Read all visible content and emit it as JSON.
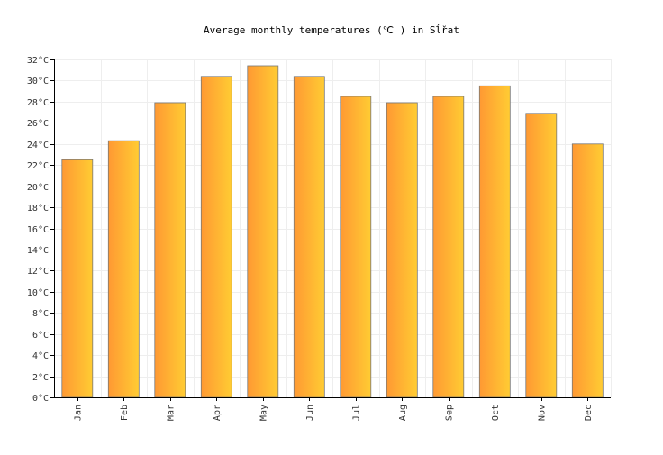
{
  "chart_data": {
    "type": "bar",
    "title": "Average monthly temperatures (℃ ) in Sĺ̌rat",
    "xlabel": "",
    "ylabel": "",
    "categories": [
      "Jan",
      "Feb",
      "Mar",
      "Apr",
      "May",
      "Jun",
      "Jul",
      "Aug",
      "Sep",
      "Oct",
      "Nov",
      "Dec"
    ],
    "values": [
      22.5,
      24.3,
      27.9,
      30.4,
      31.4,
      30.4,
      28.5,
      27.9,
      28.5,
      29.5,
      26.9,
      24.0
    ],
    "ylim": [
      0,
      32
    ],
    "ytick_step": 2,
    "ytick_unit": "°C",
    "grid": true,
    "bar_gradient": [
      "#ff9933",
      "#ffcc33"
    ],
    "bar_border": "#777777"
  }
}
